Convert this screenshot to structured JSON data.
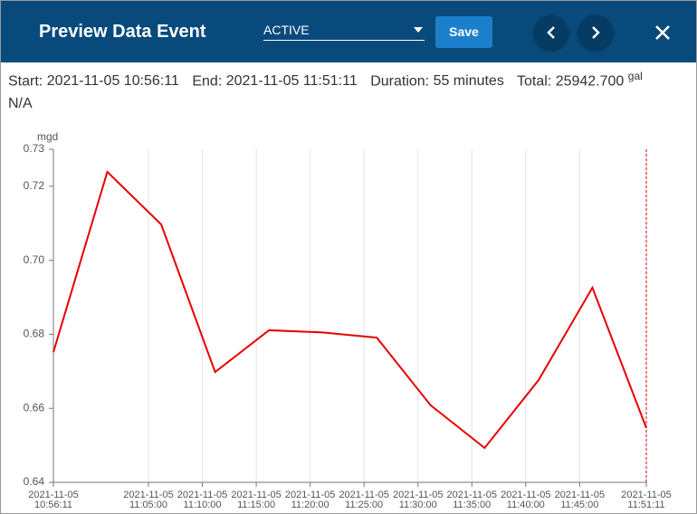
{
  "header": {
    "title": "Preview Data Event",
    "status": "ACTIVE",
    "save": "Save"
  },
  "info": {
    "start_label": "Start:",
    "start": "2021-11-05 10:56:11",
    "end_label": "End:",
    "end": "2021-11-05 11:51:11",
    "duration_label": "Duration:",
    "duration": "55 minutes",
    "total_label": "Total:",
    "total": "25942.700",
    "total_unit": "gal",
    "note": "N/A"
  },
  "chart_data": {
    "type": "line",
    "y_label": "mgd",
    "x": [
      "2021-11-05 10:56:11",
      "2021-11-05 11:01:11",
      "2021-11-05 11:06:11",
      "2021-11-05 11:11:11",
      "2021-11-05 11:16:11",
      "2021-11-05 11:21:11",
      "2021-11-05 11:26:11",
      "2021-11-05 11:31:11",
      "2021-11-05 11:36:11",
      "2021-11-05 11:41:11",
      "2021-11-05 11:46:11",
      "2021-11-05 11:51:11"
    ],
    "series": [
      {
        "color": "#e60000",
        "values": [
          0.6752,
          0.7239,
          0.7097,
          0.6698,
          0.6811,
          0.6805,
          0.6791,
          0.6608,
          0.6493,
          0.6676,
          0.6926,
          0.6547
        ]
      }
    ],
    "xlim": [
      "2021-11-05 10:56:11",
      "2021-11-05 11:51:11"
    ],
    "xticks": [
      "2021-11-05 10:56:11",
      "2021-11-05 11:05:00",
      "2021-11-05 11:10:00",
      "2021-11-05 11:15:00",
      "2021-11-05 11:20:00",
      "2021-11-05 11:25:00",
      "2021-11-05 11:30:00",
      "2021-11-05 11:35:00",
      "2021-11-05 11:40:00",
      "2021-11-05 11:45:00",
      "2021-11-05 11:51:11"
    ],
    "ylim": [
      0.64,
      0.73
    ],
    "yticks": [
      0.64,
      0.66,
      0.68,
      {
        "value": 0.7,
        "label": "0.70"
      },
      0.72,
      0.73
    ],
    "grid": true
  }
}
